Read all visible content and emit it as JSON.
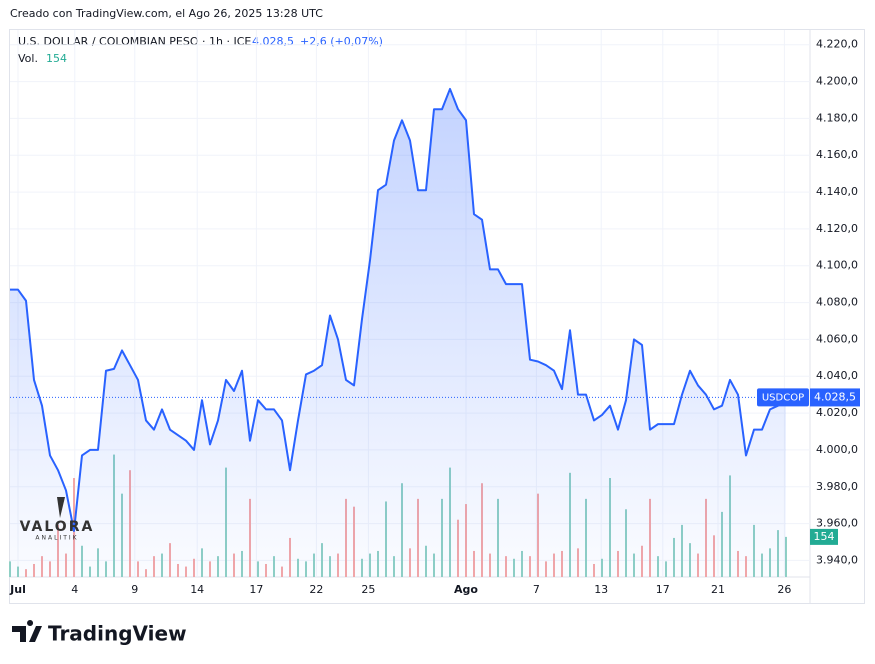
{
  "chart_data": {
    "type": "line",
    "caption": "Creado con TradingView.com, el Ago 26, 2025 13:28 UTC",
    "title": "U.S. DOLLAR / COLOMBIAN PESO · 1h · ICE",
    "last_label": "4.028,5",
    "change": "+2,6 (+0,07%)",
    "watermark": [
      "VALORA",
      "ANALITIK"
    ],
    "brand": "TradingView",
    "x": [
      0,
      1,
      2,
      3,
      4,
      5,
      6,
      7,
      8,
      9,
      10,
      11,
      12,
      13,
      14,
      15,
      16,
      17,
      18,
      19,
      20,
      21,
      22,
      23,
      24,
      25,
      26,
      27,
      28,
      29,
      30,
      31,
      32,
      33,
      34,
      35,
      36,
      37,
      38,
      39,
      40,
      41,
      42,
      43,
      44,
      45,
      46,
      47,
      48,
      49,
      50,
      51,
      52,
      53,
      54,
      55,
      56,
      57,
      58,
      59,
      60,
      61,
      62,
      63,
      64,
      65,
      66,
      67,
      68,
      69,
      70,
      71,
      72,
      73,
      74,
      75,
      76,
      77,
      78,
      79,
      80,
      81,
      82,
      83,
      84,
      85,
      86,
      87,
      88,
      89,
      90,
      91,
      92,
      93,
      94,
      95,
      96,
      97
    ],
    "series": [
      {
        "name": "USDCOP",
        "color": "#2962ff",
        "values": [
          4087,
          4087,
          4081,
          4038,
          4024,
          3997,
          3989,
          3978,
          3956,
          3997,
          4000,
          4000,
          4043,
          4044,
          4054,
          4046,
          4038,
          4016,
          4011,
          4022,
          4011,
          4008,
          4005,
          4000,
          4027,
          4003,
          4016,
          4038,
          4032,
          4043,
          4005,
          4027,
          4022,
          4022,
          4016,
          3989,
          4016,
          4041,
          4043,
          4046,
          4073,
          4060,
          4038,
          4035,
          4071,
          4103,
          4141,
          4144,
          4168,
          4179,
          4168,
          4141,
          4141,
          4185,
          4185,
          4196,
          4185,
          4179,
          4128,
          4125,
          4098,
          4098,
          4090,
          4090,
          4090,
          4049,
          4048,
          4046,
          4043,
          4033,
          4065,
          4030,
          4030,
          4016,
          4019,
          4024,
          4011,
          4027,
          4060,
          4057,
          4011,
          4014,
          4014,
          4014,
          4030,
          4043,
          4035,
          4030,
          4022,
          4024,
          4038,
          4030,
          3997,
          4011,
          4011,
          4022,
          4024,
          4028.5
        ]
      },
      {
        "name": "Vol.",
        "axis": "y2",
        "up_color": "#8fd0c4",
        "down_color": "#f4a7a7",
        "color": "#22ab94",
        "values": [
          60,
          40,
          30,
          50,
          80,
          60,
          200,
          90,
          380,
          120,
          40,
          110,
          60,
          470,
          320,
          410,
          60,
          30,
          80,
          90,
          130,
          50,
          40,
          70,
          110,
          60,
          80,
          420,
          90,
          100,
          300,
          60,
          50,
          80,
          40,
          150,
          70,
          60,
          90,
          130,
          80,
          90,
          300,
          270,
          70,
          90,
          100,
          290,
          80,
          360,
          110,
          300,
          120,
          90,
          300,
          420,
          220,
          280,
          100,
          360,
          90,
          300,
          80,
          70,
          100,
          80,
          320,
          60,
          90,
          100,
          400,
          110,
          300,
          50,
          70,
          380,
          100,
          260,
          90,
          120,
          300,
          80,
          60,
          150,
          200,
          130,
          90,
          300,
          160,
          250,
          390,
          100,
          80,
          200,
          90,
          110,
          180,
          154
        ]
      }
    ],
    "xlim": [
      0,
      100
    ],
    "xticks": [
      {
        "value": 1,
        "label": "Jul"
      },
      {
        "value": 8.1,
        "label": "4"
      },
      {
        "value": 15.6,
        "label": "9"
      },
      {
        "value": 23.4,
        "label": "14"
      },
      {
        "value": 30.8,
        "label": "17"
      },
      {
        "value": 38.3,
        "label": "22"
      },
      {
        "value": 44.8,
        "label": "25"
      },
      {
        "value": 57,
        "label": "Ago"
      },
      {
        "value": 65.8,
        "label": "7"
      },
      {
        "value": 73.9,
        "label": "13"
      },
      {
        "value": 81.6,
        "label": "17"
      },
      {
        "value": 88.5,
        "label": "21"
      },
      {
        "value": 96.8,
        "label": "26"
      }
    ],
    "ylim": [
      3931,
      4228
    ],
    "yticks": [
      {
        "value": 3940,
        "label": "3.940,0"
      },
      {
        "value": 3960,
        "label": "3.960,0"
      },
      {
        "value": 3980,
        "label": "3.980,0"
      },
      {
        "value": 4000,
        "label": "4.000,0"
      },
      {
        "value": 4020,
        "label": "4.020,0"
      },
      {
        "value": 4040,
        "label": "4.040,0"
      },
      {
        "value": 4060,
        "label": "4.060,0"
      },
      {
        "value": 4080,
        "label": "4.080,0"
      },
      {
        "value": 4100,
        "label": "4.100,0"
      },
      {
        "value": 4120,
        "label": "4.120,0"
      },
      {
        "value": 4140,
        "label": "4.140,0"
      },
      {
        "value": 4160,
        "label": "4.160,0"
      },
      {
        "value": 4180,
        "label": "4.180,0"
      },
      {
        "value": 4200,
        "label": "4.200,0"
      },
      {
        "value": 4220,
        "label": "4.220,0"
      }
    ],
    "y2lim": [
      0,
      2100
    ],
    "grid": true
  }
}
